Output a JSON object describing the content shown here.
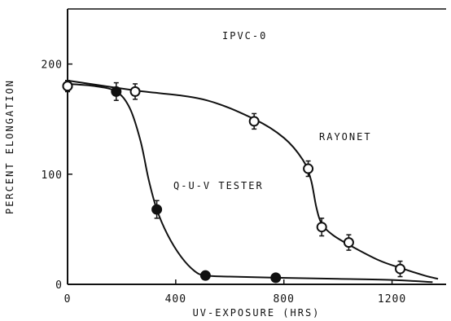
{
  "chart_data": {
    "type": "scatter",
    "title": "",
    "xlabel": "UV-EXPOSURE (HRS)",
    "ylabel": "PERCENT ELONGATION",
    "xlim": [
      0,
      1400
    ],
    "ylim": [
      0,
      250
    ],
    "x_ticks": [
      0,
      400,
      800,
      1200
    ],
    "x_tick_labels": [
      "0",
      "400",
      "800",
      "1200"
    ],
    "y_ticks": [
      0,
      100,
      200
    ],
    "y_tick_labels": [
      "0",
      "100",
      "200"
    ],
    "grid": false,
    "annotations": [
      "IPVC-0",
      "RAYONET",
      "Q-U-V TESTER"
    ],
    "series": [
      {
        "name": "Q-U-V TESTER",
        "marker": "filled-circle",
        "points": [
          {
            "x": 0,
            "y": 180
          },
          {
            "x": 180,
            "y": 175
          },
          {
            "x": 330,
            "y": 68
          },
          {
            "x": 510,
            "y": 8
          },
          {
            "x": 770,
            "y": 6
          }
        ],
        "error": [
          5,
          8,
          8,
          0,
          0
        ],
        "curve": [
          [
            0,
            182
          ],
          [
            100,
            180
          ],
          [
            180,
            175
          ],
          [
            230,
            160
          ],
          [
            270,
            130
          ],
          [
            300,
            95
          ],
          [
            330,
            68
          ],
          [
            370,
            45
          ],
          [
            420,
            25
          ],
          [
            470,
            12
          ],
          [
            510,
            8
          ],
          [
            600,
            7
          ],
          [
            770,
            6
          ],
          [
            1000,
            5
          ],
          [
            1200,
            4
          ],
          [
            1350,
            2
          ]
        ]
      },
      {
        "name": "RAYONET",
        "marker": "open-circle",
        "points": [
          {
            "x": 0,
            "y": 180
          },
          {
            "x": 250,
            "y": 175
          },
          {
            "x": 690,
            "y": 148
          },
          {
            "x": 890,
            "y": 105
          },
          {
            "x": 940,
            "y": 52
          },
          {
            "x": 1040,
            "y": 38
          },
          {
            "x": 1230,
            "y": 14
          }
        ],
        "error": [
          5,
          7,
          7,
          7,
          8,
          7,
          7
        ],
        "curve": [
          [
            0,
            185
          ],
          [
            250,
            176
          ],
          [
            500,
            168
          ],
          [
            690,
            150
          ],
          [
            800,
            133
          ],
          [
            870,
            113
          ],
          [
            900,
            95
          ],
          [
            920,
            70
          ],
          [
            940,
            55
          ],
          [
            980,
            45
          ],
          [
            1040,
            36
          ],
          [
            1150,
            22
          ],
          [
            1230,
            15
          ],
          [
            1320,
            8
          ],
          [
            1370,
            5
          ]
        ]
      }
    ]
  }
}
